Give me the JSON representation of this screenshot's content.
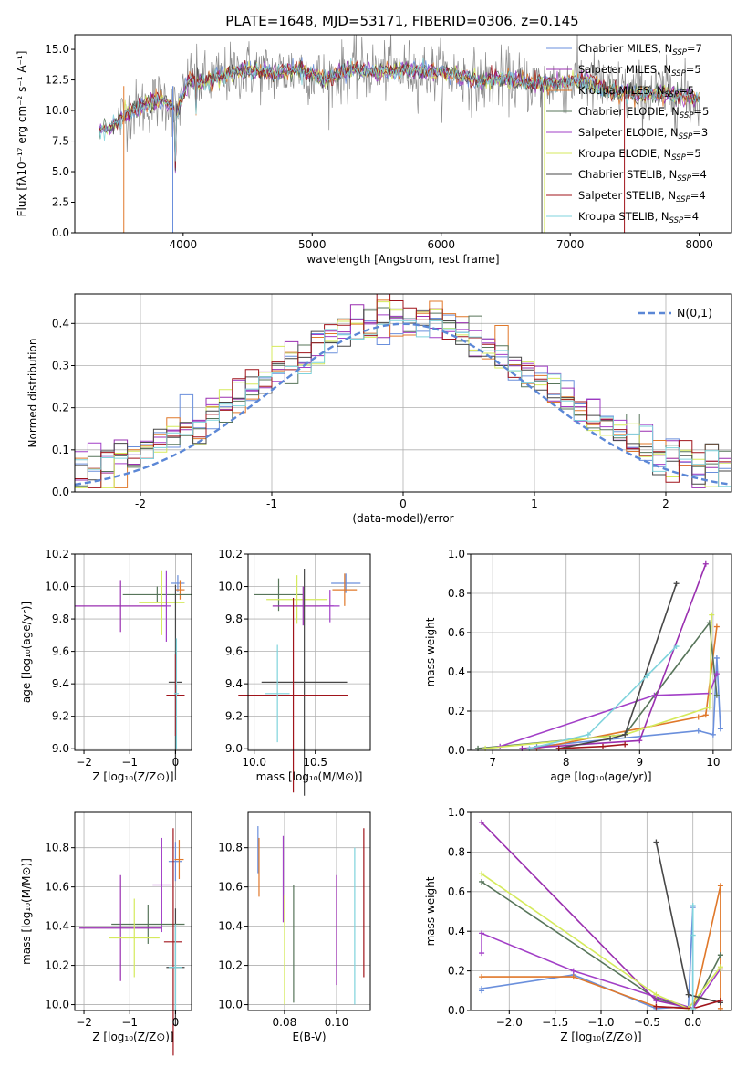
{
  "figure_title": "PLATE=1648, MJD=53171, FIBERID=0306, z=0.145",
  "series_labels": {
    "sub": "SSP",
    "items": [
      {
        "pre": "Chabrier MILES, N",
        "post": "=7",
        "color": "#6a8fdc"
      },
      {
        "pre": "Salpeter MILES, N",
        "post": "=5",
        "color": "#9a2fb0"
      },
      {
        "pre": "Kroupa MILES, N",
        "post": "=5",
        "color": "#e0782a"
      },
      {
        "pre": "Chabrier ELODIE, N",
        "post": "=5",
        "color": "#57755a"
      },
      {
        "pre": "Salpeter ELODIE, N",
        "post": "=3",
        "color": "#a23fc7"
      },
      {
        "pre": "Kroupa ELODIE, N",
        "post": "=5",
        "color": "#d5ea5c"
      },
      {
        "pre": "Chabrier STELIB, N",
        "post": "=4",
        "color": "#474747"
      },
      {
        "pre": "Salpeter STELIB, N",
        "post": "=4",
        "color": "#a0141b"
      },
      {
        "pre": "Kroupa STELIB, N",
        "post": "=4",
        "color": "#7fd3dc"
      }
    ]
  },
  "chart_data": [
    {
      "id": "spectrum",
      "type": "line",
      "xlabel": "wavelength [Angstrom, rest frame]",
      "ylabel": "Flux [fλ10⁻¹⁷ erg cm⁻² s⁻¹ A⁻¹]",
      "xlim": [
        3160,
        8250
      ],
      "ylim": [
        0,
        16.2
      ],
      "xticks": [
        4000,
        5000,
        6000,
        7000,
        8000
      ],
      "yticks": [
        0.0,
        2.5,
        5.0,
        7.5,
        10.0,
        12.5,
        15.0
      ],
      "grid": false,
      "legend": "top-right",
      "continuum": {
        "x": [
          3350,
          3450,
          3550,
          3650,
          3750,
          3850,
          3950,
          4050,
          4150,
          4300,
          4500,
          4700,
          4900,
          5100,
          5300,
          5500,
          5700,
          5900,
          6100,
          6300,
          6500,
          6700,
          6900,
          7100,
          7300,
          7500,
          7700,
          7900,
          8000
        ],
        "y": [
          8.4,
          8.7,
          9.7,
          10.2,
          10.6,
          11.0,
          9.9,
          12.6,
          12.3,
          12.8,
          13.4,
          13.0,
          13.4,
          12.5,
          13.4,
          13.2,
          13.3,
          13.2,
          13.0,
          12.4,
          12.6,
          12.2,
          12.2,
          12.5,
          11.6,
          11.3,
          11.4,
          11.1,
          11.0
        ]
      },
      "observed_noise_amplitude": 2.2
    },
    {
      "id": "residuals",
      "type": "histogram",
      "xlabel": "(data-model)/error",
      "ylabel": "Normed distribution",
      "xlim": [
        -2.5,
        2.5
      ],
      "ylim": [
        0,
        0.47
      ],
      "xticks": [
        -2,
        -1,
        0,
        1,
        2
      ],
      "yticks": [
        0.0,
        0.1,
        0.2,
        0.3,
        0.4
      ],
      "grid": true,
      "legend": "top-right",
      "reference_label": "N(0,1)",
      "reference": {
        "mean": 0,
        "std": 1,
        "color": "#5b87d6"
      },
      "bin_width": 0.1
    },
    {
      "id": "age-vs-Z",
      "type": "errorbar",
      "xlabel": "Z [log₁₀(Z/Z⊙)]",
      "ylabel": "age [log₁₀(age/yr)]",
      "xlim": [
        -2.2,
        0.35
      ],
      "ylim": [
        8.99,
        10.2
      ],
      "xticks": [
        -2,
        -1,
        0
      ],
      "yticks": [
        9.0,
        9.2,
        9.4,
        9.6,
        9.8,
        10.0,
        10.2
      ],
      "grid": true,
      "points": [
        {
          "series": 0,
          "x": 0.05,
          "y": 10.02,
          "xerr": 0.15,
          "yerr": 0.05
        },
        {
          "series": 2,
          "x": 0.1,
          "y": 9.98,
          "xerr": 0.1,
          "yerr": 0.06
        },
        {
          "series": 3,
          "x": -0.4,
          "y": 9.95,
          "xerr": 0.75,
          "yerr": 0.05
        },
        {
          "series": 5,
          "x": -0.3,
          "y": 9.9,
          "xerr": 0.5,
          "yerr": 0.2
        },
        {
          "series": 1,
          "x": -1.2,
          "y": 9.88,
          "xerr": 1.0,
          "yerr": 0.16
        },
        {
          "series": 4,
          "x": -0.2,
          "y": 9.88,
          "xerr": 0.1,
          "yerr": 0.22
        },
        {
          "series": 6,
          "x": 0.0,
          "y": 9.41,
          "xerr": 0.15,
          "yerr": 0.6
        },
        {
          "series": 7,
          "x": 0.0,
          "y": 9.33,
          "xerr": 0.2,
          "yerr": 0.25
        },
        {
          "series": 8,
          "x": 0.02,
          "y": 9.34,
          "xerr": 0.05,
          "yerr": 0.34
        }
      ]
    },
    {
      "id": "age-vs-mass",
      "type": "errorbar",
      "xlabel": "mass [log₁₀(M/M⊙)]",
      "ylabel": "",
      "xlim": [
        9.95,
        10.95
      ],
      "ylim": [
        8.99,
        10.2
      ],
      "xticks": [
        10.0,
        10.5
      ],
      "yticks": [
        9.0,
        9.2,
        9.4,
        9.6,
        9.8,
        10.0,
        10.2
      ],
      "grid": true,
      "points": [
        {
          "series": 0,
          "x": 10.75,
          "y": 10.02,
          "xerr": 0.12,
          "yerr": 0.06
        },
        {
          "series": 2,
          "x": 10.74,
          "y": 9.98,
          "xerr": 0.1,
          "yerr": 0.1
        },
        {
          "series": 3,
          "x": 10.2,
          "y": 9.95,
          "xerr": 0.2,
          "yerr": 0.1
        },
        {
          "series": 5,
          "x": 10.35,
          "y": 9.92,
          "xerr": 0.25,
          "yerr": 0.15
        },
        {
          "series": 1,
          "x": 10.4,
          "y": 9.88,
          "xerr": 0.25,
          "yerr": 0.12
        },
        {
          "series": 4,
          "x": 10.62,
          "y": 9.88,
          "xerr": 0.08,
          "yerr": 0.1
        },
        {
          "series": 6,
          "x": 10.41,
          "y": 9.41,
          "xerr": 0.35,
          "yerr": 0.7
        },
        {
          "series": 7,
          "x": 10.32,
          "y": 9.33,
          "xerr": 0.45,
          "yerr": 0.6
        },
        {
          "series": 8,
          "x": 10.19,
          "y": 9.34,
          "xerr": 0.1,
          "yerr": 0.3
        }
      ]
    },
    {
      "id": "weight-vs-age",
      "type": "line",
      "xlabel": "age [log₁₀(age/yr)]",
      "ylabel": "mass weight",
      "xlim": [
        6.7,
        10.25
      ],
      "ylim": [
        0,
        1.0
      ],
      "xticks": [
        7,
        8,
        9,
        10
      ],
      "yticks": [
        0.0,
        0.2,
        0.4,
        0.6,
        0.8,
        1.0
      ],
      "grid": true,
      "series": [
        {
          "series": 0,
          "x": [
            7.6,
            9.8,
            10.0,
            10.05,
            10.1
          ],
          "y": [
            0.02,
            0.1,
            0.08,
            0.47,
            0.11
          ]
        },
        {
          "series": 2,
          "x": [
            7.6,
            9.8,
            9.9,
            10.05
          ],
          "y": [
            0.01,
            0.17,
            0.18,
            0.63
          ]
        },
        {
          "series": 3,
          "x": [
            6.8,
            8.8,
            9.95,
            10.05
          ],
          "y": [
            0.01,
            0.08,
            0.65,
            0.28
          ]
        },
        {
          "series": 4,
          "x": [
            7.1,
            9.2,
            9.95,
            10.05
          ],
          "y": [
            0.02,
            0.28,
            0.29,
            0.39
          ]
        },
        {
          "series": 1,
          "x": [
            7.4,
            9.0,
            9.9
          ],
          "y": [
            0.01,
            0.05,
            0.95
          ]
        },
        {
          "series": 5,
          "x": [
            6.9,
            8.8,
            9.95,
            9.98
          ],
          "y": [
            0.01,
            0.08,
            0.22,
            0.69
          ]
        },
        {
          "series": 6,
          "x": [
            7.9,
            8.6,
            8.8,
            9.5
          ],
          "y": [
            0.01,
            0.06,
            0.08,
            0.85
          ]
        },
        {
          "series": 7,
          "x": [
            7.9,
            8.5,
            8.8
          ],
          "y": [
            0.01,
            0.02,
            0.03
          ]
        },
        {
          "series": 8,
          "x": [
            7.5,
            8.3,
            9.1,
            9.5
          ],
          "y": [
            0.01,
            0.08,
            0.38,
            0.53
          ]
        }
      ]
    },
    {
      "id": "mass-vs-Z",
      "type": "errorbar",
      "xlabel": "Z [log₁₀(Z/Z⊙)]",
      "ylabel": "mass [log₁₀(M/M⊙)]",
      "xlim": [
        -2.2,
        0.35
      ],
      "ylim": [
        9.97,
        10.98
      ],
      "xticks": [
        -2,
        -1,
        0
      ],
      "yticks": [
        10.0,
        10.2,
        10.4,
        10.6,
        10.8
      ],
      "grid": true,
      "points": [
        {
          "series": 0,
          "x": 0.0,
          "y": 10.73,
          "xerr": 0.15,
          "yerr": 0.1
        },
        {
          "series": 2,
          "x": 0.08,
          "y": 10.74,
          "xerr": 0.1,
          "yerr": 0.1
        },
        {
          "series": 4,
          "x": -0.3,
          "y": 10.61,
          "xerr": 0.2,
          "yerr": 0.24
        },
        {
          "series": 3,
          "x": -0.6,
          "y": 10.41,
          "xerr": 0.8,
          "yerr": 0.1
        },
        {
          "series": 1,
          "x": -1.2,
          "y": 10.39,
          "xerr": 0.9,
          "yerr": 0.27
        },
        {
          "series": 5,
          "x": -0.9,
          "y": 10.34,
          "xerr": 0.55,
          "yerr": 0.2
        },
        {
          "series": 7,
          "x": -0.05,
          "y": 10.32,
          "xerr": 0.2,
          "yerr": 0.58
        },
        {
          "series": 6,
          "x": 0.0,
          "y": 10.19,
          "xerr": 0.2,
          "yerr": 0.3
        },
        {
          "series": 8,
          "x": 0.0,
          "y": 10.19,
          "xerr": 0.15,
          "yerr": 0.22
        }
      ]
    },
    {
      "id": "mass-vs-EBV",
      "type": "errorbar",
      "xlabel": "E(B-V)",
      "ylabel": "",
      "xlim": [
        0.066,
        0.113
      ],
      "ylim": [
        9.97,
        10.98
      ],
      "xticks": [
        0.08,
        0.1
      ],
      "yticks": [
        10.0,
        10.2,
        10.4,
        10.6,
        10.8
      ],
      "grid": true,
      "points": [
        {
          "series": 0,
          "x": 0.0698,
          "y": 10.79,
          "xerr": 0,
          "yerr": 0.12
        },
        {
          "series": 2,
          "x": 0.0702,
          "y": 10.7,
          "xerr": 0,
          "yerr": 0.15
        },
        {
          "series": 4,
          "x": 0.0795,
          "y": 10.64,
          "xerr": 0,
          "yerr": 0.22
        },
        {
          "series": 5,
          "x": 0.08,
          "y": 10.28,
          "xerr": 0,
          "yerr": 0.28
        },
        {
          "series": 3,
          "x": 0.0835,
          "y": 10.31,
          "xerr": 0,
          "yerr": 0.3
        },
        {
          "series": 1,
          "x": 0.1,
          "y": 10.38,
          "xerr": 0,
          "yerr": 0.28
        },
        {
          "series": 8,
          "x": 0.107,
          "y": 10.4,
          "xerr": 0,
          "yerr": 0.4
        },
        {
          "series": 7,
          "x": 0.1105,
          "y": 10.52,
          "xerr": 0,
          "yerr": 0.38
        }
      ]
    },
    {
      "id": "weight-vs-Z",
      "type": "line",
      "xlabel": "Z [log₁₀(Z/Z⊙)]",
      "ylabel": "mass weight",
      "xlim": [
        -2.42,
        0.42
      ],
      "ylim": [
        0,
        1.0
      ],
      "xticks": [
        -2.0,
        -1.5,
        -1.0,
        -0.5,
        0.0
      ],
      "yticks": [
        0.0,
        0.2,
        0.4,
        0.6,
        0.8,
        1.0
      ],
      "grid": true,
      "series": [
        {
          "series": 0,
          "x": [
            -2.3,
            -2.3,
            -1.3,
            -0.4,
            -0.05,
            0.0,
            0.0
          ],
          "y": [
            0.1,
            0.11,
            0.18,
            0.01,
            0.02,
            0.52,
            0.03
          ]
        },
        {
          "series": 2,
          "x": [
            -2.3,
            -1.3,
            -0.4,
            0.0,
            0.3,
            0.3
          ],
          "y": [
            0.17,
            0.17,
            0.02,
            0.01,
            0.63,
            0.01
          ]
        },
        {
          "series": 3,
          "x": [
            -2.3,
            -0.4,
            0.0,
            0.3,
            0.3
          ],
          "y": [
            0.65,
            0.06,
            0.01,
            0.28,
            0.28
          ]
        },
        {
          "series": 4,
          "x": [
            -2.3,
            -2.3,
            -1.3,
            0.0,
            0.3,
            0.3
          ],
          "y": [
            0.29,
            0.39,
            0.2,
            0.01,
            0.21,
            0.21
          ]
        },
        {
          "series": 1,
          "x": [
            -2.3,
            -0.4,
            0.0
          ],
          "y": [
            0.95,
            0.05,
            0.01
          ]
        },
        {
          "series": 5,
          "x": [
            -2.3,
            -0.4,
            -0.05,
            0.3,
            0.3
          ],
          "y": [
            0.69,
            0.08,
            0.01,
            0.22,
            0.21
          ]
        },
        {
          "series": 6,
          "x": [
            -0.4,
            -0.05,
            0.3,
            0.3
          ],
          "y": [
            0.85,
            0.08,
            0.04,
            0.04
          ]
        },
        {
          "series": 7,
          "x": [
            -0.4,
            0.0,
            0.3
          ],
          "y": [
            0.02,
            0.01,
            0.05
          ]
        },
        {
          "series": 8,
          "x": [
            0.0,
            0.0,
            0.0
          ],
          "y": [
            0.53,
            0.38,
            0.01
          ]
        }
      ]
    }
  ]
}
